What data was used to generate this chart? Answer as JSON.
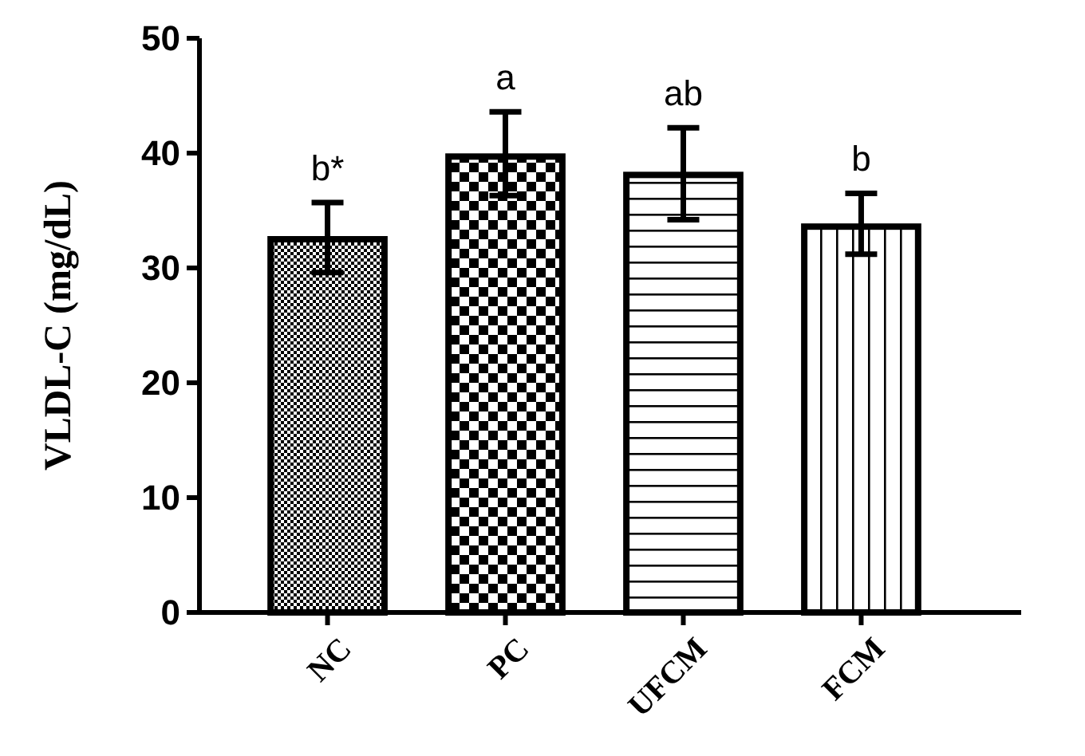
{
  "chart_data": {
    "type": "bar",
    "ylabel": "VLDL-C (mg/dL)",
    "categories": [
      "NC",
      "PC",
      "UFCM",
      "FCM"
    ],
    "values": [
      32.5,
      39.7,
      38.1,
      33.6
    ],
    "errors": [
      [
        29.6,
        35.7
      ],
      [
        36.3,
        43.6
      ],
      [
        34.2,
        42.2
      ],
      [
        31.2,
        36.5
      ]
    ],
    "color": "#000000",
    "ylim": [
      0,
      50
    ],
    "yticks": [
      0,
      10,
      20,
      30,
      40,
      50
    ],
    "annotations": [
      {
        "text": "b*",
        "x": "NC",
        "y": 35.7
      },
      {
        "text": "a",
        "x": "PC",
        "y": 43.6
      },
      {
        "text": "ab",
        "x": "UFCM",
        "y": 42.2
      },
      {
        "text": "b",
        "x": "FCM",
        "y": 36.5
      }
    ]
  }
}
